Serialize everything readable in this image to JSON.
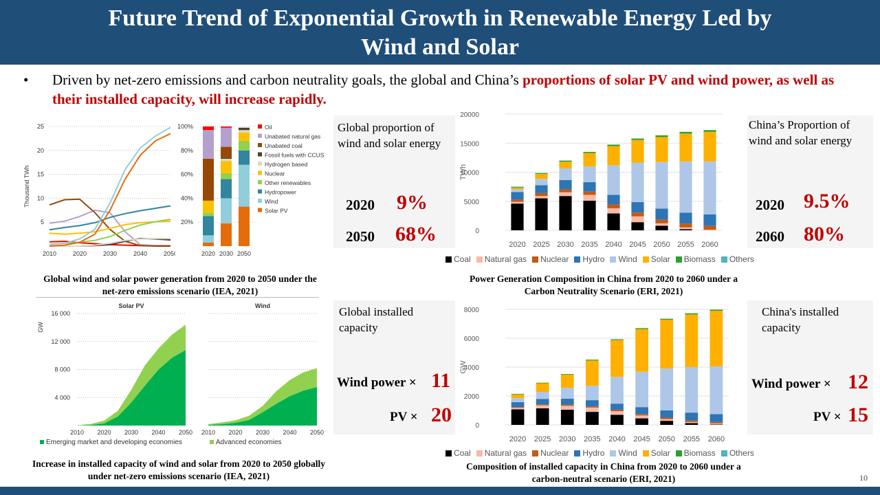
{
  "header": {
    "title_line1": "Future Trend of Exponential Growth in Renewable Energy Led by",
    "title_line2": "Wind and Solar"
  },
  "bullet": {
    "marker": "•",
    "text_plain": "Driven by net-zero emissions and carbon neutrality goals, the global and China’s ",
    "text_highlight": "proportions of solar PV and wind power,  as well as their installed capacity, will increase rapidly."
  },
  "panels": {
    "global_share": {
      "title": "Global proportion of wind and solar energy",
      "rows": [
        {
          "year": "2020",
          "value": "9%"
        },
        {
          "year": "2050",
          "value": "68%"
        }
      ]
    },
    "china_share": {
      "title": "China’s Proportion of wind and solar energy",
      "rows": [
        {
          "year": "2020",
          "value": "9.5%"
        },
        {
          "year": "2060",
          "value": "80%"
        }
      ]
    },
    "global_capacity": {
      "title": "Global installed capacity",
      "rows": [
        {
          "label": "Wind power ×",
          "value": "11"
        },
        {
          "label": "PV  ×",
          "value": "20"
        }
      ]
    },
    "china_capacity": {
      "title": "China's installed capacity",
      "rows": [
        {
          "label": "Wind power ×",
          "value": "12"
        },
        {
          "label": "PV ×",
          "value": "15"
        }
      ]
    }
  },
  "captions": {
    "chart1": "Global wind and solar power generation from 2020 to 2050 under the net-zero emissions scenario (IEA, 2021)",
    "chart2": "Power Generation Composition in China from 2020 to 2060 under a Carbon Neutrality Scenario (ERI, 2021)",
    "chart3": "Increase in installed capacity of wind and solar from 2020 to 2050 globally under net-zero emissions scenario (IEA, 2021)",
    "chart4": "Composition of installed capacity in China from 2020 to 2060 under a carbon-neutral scenario (ERI, 2021)"
  },
  "page_number": "10",
  "chart_data": [
    {
      "id": "global_generation_lines",
      "type": "line",
      "title": "",
      "xlabel": "",
      "ylabel": "Thousand TWh",
      "xlim": [
        2010,
        2050
      ],
      "ylim": [
        0,
        25
      ],
      "xticks": [
        "2010",
        "2020",
        "2030",
        "2040",
        "2050"
      ],
      "yticks": [
        "5",
        "10",
        "15",
        "20",
        "25"
      ],
      "grid": true,
      "x": [
        2010,
        2015,
        2020,
        2025,
        2030,
        2035,
        2040,
        2045,
        2050
      ],
      "series": [
        {
          "name": "Oil",
          "color": "#ff0000",
          "values": [
            0.9,
            1.0,
            0.7,
            0.5,
            0.3,
            0.2,
            0.1,
            0.1,
            0.1
          ]
        },
        {
          "name": "Unabated natural gas",
          "color": "#b4a0cc",
          "values": [
            4.8,
            5.2,
            6.2,
            7.5,
            7.0,
            3.0,
            0.3,
            0.1,
            0.1
          ]
        },
        {
          "name": "Unabated coal",
          "color": "#974806",
          "values": [
            8.6,
            9.7,
            9.8,
            7.0,
            3.5,
            1.0,
            0.1,
            0.0,
            0.0
          ]
        },
        {
          "name": "Fossil fuels with CCUS",
          "color": "#4a4130",
          "values": [
            0.0,
            0.0,
            0.0,
            0.1,
            0.3,
            1.0,
            1.6,
            1.5,
            1.3
          ]
        },
        {
          "name": "Hydrogen based",
          "color": "#ddd9c3",
          "values": [
            0.0,
            0.0,
            0.0,
            0.2,
            0.6,
            1.2,
            1.5,
            1.6,
            1.6
          ]
        },
        {
          "name": "Nuclear",
          "color": "#ffc000",
          "values": [
            2.7,
            2.5,
            2.7,
            3.0,
            3.7,
            4.5,
            4.9,
            5.1,
            5.2
          ]
        },
        {
          "name": "Other renewables",
          "color": "#92d050",
          "values": [
            0.4,
            0.6,
            0.8,
            1.2,
            2.0,
            3.3,
            4.4,
            5.1,
            5.6
          ]
        },
        {
          "name": "Hydropower",
          "color": "#31859c",
          "values": [
            3.4,
            3.9,
            4.3,
            4.9,
            6.0,
            6.8,
            7.4,
            7.9,
            8.4
          ]
        },
        {
          "name": "Wind",
          "color": "#92cddc",
          "values": [
            0.3,
            0.6,
            1.5,
            3.5,
            9.0,
            16.0,
            20.5,
            23.0,
            24.8
          ]
        },
        {
          "name": "Solar PV",
          "color": "#e46c0a",
          "values": [
            0.0,
            0.2,
            0.8,
            2.5,
            7.5,
            14.0,
            19.0,
            22.0,
            23.5
          ]
        }
      ]
    },
    {
      "id": "global_generation_share",
      "type": "bar",
      "stacked": true,
      "ylim": [
        0,
        100
      ],
      "yticks": [
        "20%",
        "40%",
        "60%",
        "80%",
        "100%"
      ],
      "categories": [
        "2020",
        "2030",
        "2050"
      ],
      "legend": "right",
      "series": [
        {
          "name": "Solar PV",
          "color": "#e46c0a",
          "values": [
            3,
            19,
            33
          ]
        },
        {
          "name": "Wind",
          "color": "#92cddc",
          "values": [
            6,
            21,
            35
          ]
        },
        {
          "name": "Hydropower",
          "color": "#31859c",
          "values": [
            16,
            16,
            12
          ]
        },
        {
          "name": "Other renewables",
          "color": "#92d050",
          "values": [
            3,
            5,
            8
          ]
        },
        {
          "name": "Nuclear",
          "color": "#ffc000",
          "values": [
            10,
            10,
            7
          ]
        },
        {
          "name": "Hydrogen based",
          "color": "#ddd9c3",
          "values": [
            0,
            2,
            2
          ]
        },
        {
          "name": "Fossil fuels with CCUS",
          "color": "#4a4130",
          "values": [
            0,
            1,
            2
          ]
        },
        {
          "name": "Unabated coal",
          "color": "#974806",
          "values": [
            35,
            9,
            0
          ]
        },
        {
          "name": "Unabated natural gas",
          "color": "#b4a0cc",
          "values": [
            24,
            16,
            0
          ]
        },
        {
          "name": "Oil",
          "color": "#ff0000",
          "values": [
            3,
            1,
            0
          ]
        }
      ],
      "legend_order": [
        "Oil",
        "Unabated natural gas",
        "Unabated coal",
        "Fossil fuels with CCUS",
        "Hydrogen based",
        "Nuclear",
        "Other renewables",
        "Hydropower",
        "Wind",
        "Solar PV"
      ]
    },
    {
      "id": "china_generation",
      "type": "bar",
      "stacked": true,
      "ylabel": "TWh",
      "ylim": [
        0,
        20000
      ],
      "yticks": [
        "0",
        "5000",
        "10000",
        "15000",
        "20000"
      ],
      "categories": [
        "2020",
        "2025",
        "2030",
        "2035",
        "2040",
        "2045",
        "2050",
        "2055",
        "2060"
      ],
      "legend": "bottom",
      "grid": true,
      "series": [
        {
          "name": "Coal",
          "color": "#000000",
          "values": [
            4600,
            5500,
            5900,
            5100,
            2900,
            1400,
            800,
            200,
            0
          ]
        },
        {
          "name": "Natural gas",
          "color": "#f8b9a8",
          "values": [
            300,
            400,
            650,
            1000,
            900,
            1000,
            400,
            300,
            100
          ]
        },
        {
          "name": "Nuclear",
          "color": "#c55a11",
          "values": [
            350,
            500,
            500,
            550,
            650,
            650,
            650,
            650,
            650
          ]
        },
        {
          "name": "Hydro",
          "color": "#2e75b6",
          "values": [
            1350,
            1350,
            1600,
            1650,
            1650,
            1800,
            1900,
            1900,
            2000
          ]
        },
        {
          "name": "Wind",
          "color": "#aec7e8",
          "values": [
            450,
            1100,
            2000,
            2700,
            5100,
            6800,
            8000,
            8800,
            9100
          ]
        },
        {
          "name": "Solar",
          "color": "#ffb000",
          "values": [
            300,
            850,
            1150,
            2300,
            3300,
            3900,
            4300,
            4800,
            5100
          ]
        },
        {
          "name": "Biomass",
          "color": "#2ca02c",
          "values": [
            150,
            150,
            200,
            200,
            250,
            250,
            300,
            300,
            300
          ]
        },
        {
          "name": "Others",
          "color": "#4bb5c1",
          "values": [
            0,
            0,
            0,
            0,
            0,
            0,
            0,
            0,
            0
          ]
        }
      ]
    },
    {
      "id": "global_capacity_area",
      "type": "area",
      "stacked": true,
      "ylabel": "GW",
      "ylim": [
        0,
        16000
      ],
      "yticks": [
        "4 000",
        "8 000",
        "12 000",
        "16 000"
      ],
      "xticks": [
        "2010",
        "2020",
        "2030",
        "2040",
        "2050"
      ],
      "x": [
        2010,
        2015,
        2020,
        2025,
        2030,
        2035,
        2040,
        2045,
        2050
      ],
      "legend": "bottom",
      "panels": [
        {
          "title": "Solar PV",
          "series": [
            {
              "name": "Emerging market and developing economies",
              "color": "#00b050",
              "values": [
                0,
                80,
                300,
                1300,
                3300,
                5700,
                8000,
                9700,
                10800
              ]
            },
            {
              "name": "Advanced economies",
              "color": "#92d050",
              "values": [
                50,
                150,
                400,
                800,
                1800,
                2900,
                3000,
                3300,
                3600
              ]
            }
          ]
        },
        {
          "title": "Wind",
          "series": [
            {
              "name": "Emerging market and developing economies",
              "color": "#00b050",
              "values": [
                100,
                200,
                400,
                800,
                1900,
                3100,
                4200,
                5000,
                5500
              ]
            },
            {
              "name": "Advanced economies",
              "color": "#92d050",
              "values": [
                100,
                250,
                350,
                600,
                900,
                1800,
                2300,
                2600,
                2700
              ]
            }
          ]
        }
      ]
    },
    {
      "id": "china_capacity",
      "type": "bar",
      "stacked": true,
      "ylabel": "GW",
      "ylim": [
        0,
        8000
      ],
      "yticks": [
        "0",
        "2000",
        "4000",
        "6000",
        "8000"
      ],
      "categories": [
        "2020",
        "2025",
        "2030",
        "2035",
        "2040",
        "2045",
        "2050",
        "2055",
        "2060"
      ],
      "legend": "bottom",
      "grid": true,
      "series": [
        {
          "name": "Coal",
          "color": "#000000",
          "values": [
            1080,
            1150,
            1050,
            900,
            700,
            450,
            280,
            120,
            30
          ]
        },
        {
          "name": "Natural gas",
          "color": "#f8b9a8",
          "values": [
            100,
            200,
            270,
            300,
            250,
            200,
            120,
            80,
            70
          ]
        },
        {
          "name": "Nuclear",
          "color": "#c55a11",
          "values": [
            50,
            70,
            80,
            90,
            100,
            100,
            100,
            100,
            100
          ]
        },
        {
          "name": "Hydro",
          "color": "#2e75b6",
          "values": [
            350,
            380,
            420,
            420,
            420,
            480,
            500,
            550,
            550
          ]
        },
        {
          "name": "Wind",
          "color": "#aec7e8",
          "values": [
            280,
            480,
            750,
            1000,
            1850,
            2450,
            2900,
            3150,
            3300
          ]
        },
        {
          "name": "Solar",
          "color": "#ffb000",
          "values": [
            250,
            600,
            900,
            1750,
            2550,
            2950,
            3380,
            3650,
            3850
          ]
        },
        {
          "name": "Biomass",
          "color": "#2ca02c",
          "values": [
            40,
            40,
            50,
            60,
            60,
            70,
            70,
            80,
            80
          ]
        },
        {
          "name": "Others",
          "color": "#4bb5c1",
          "values": [
            0,
            0,
            0,
            0,
            0,
            0,
            0,
            0,
            0
          ]
        }
      ]
    }
  ]
}
